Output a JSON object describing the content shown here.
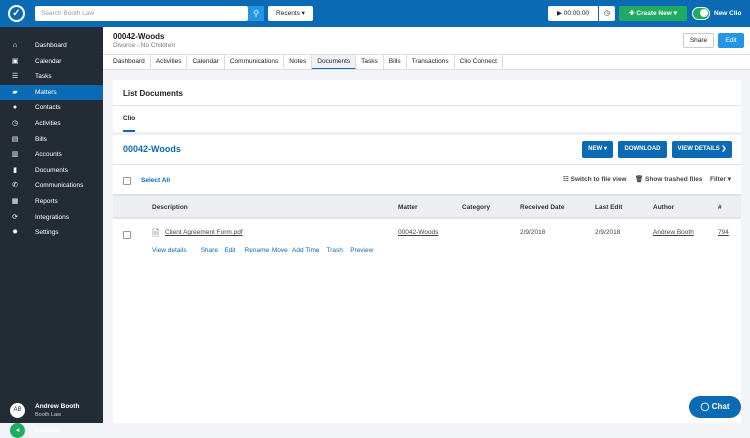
{
  "topbar": {
    "search_placeholder": "Search Booth Law",
    "recents": "Recents ▾",
    "timer": "▶ 00:00:00",
    "create_new": "✚ Create New ▾",
    "new_clio": "New Clio"
  },
  "sidebar": {
    "items": [
      {
        "label": "Dashboard",
        "icon": "⌂"
      },
      {
        "label": "Calendar",
        "icon": "▣"
      },
      {
        "label": "Tasks",
        "icon": "☰"
      },
      {
        "label": "Matters",
        "icon": "▰"
      },
      {
        "label": "Contacts",
        "icon": "●"
      },
      {
        "label": "Activities",
        "icon": "◷"
      },
      {
        "label": "Bills",
        "icon": "▤"
      },
      {
        "label": "Accounts",
        "icon": "▥"
      },
      {
        "label": "Documents",
        "icon": "▮"
      },
      {
        "label": "Communications",
        "icon": "✆"
      },
      {
        "label": "Reports",
        "icon": "▦"
      },
      {
        "label": "Integrations",
        "icon": "⟳"
      },
      {
        "label": "Settings",
        "icon": "✹"
      }
    ],
    "active": "Matters",
    "user": {
      "initials": "AB",
      "name": "Andrew Booth",
      "firm": "Booth Law"
    },
    "collapse": "Collapse"
  },
  "matter": {
    "title": "00042-Woods",
    "subtitle": "Divorce - No Children",
    "share": "Share",
    "edit": "Edit"
  },
  "tabs": [
    "Dashboard",
    "Activities",
    "Calendar",
    "Communications",
    "Notes",
    "Documents",
    "Tasks",
    "Bills",
    "Transactions",
    "Clio Connect"
  ],
  "active_tab": "Documents",
  "card": {
    "title": "List Documents",
    "subtab": "Clio",
    "folder": "00042-Woods",
    "new": "NEW ▾",
    "download": "DOWNLOAD",
    "view_details": "VIEW DETAILS ❯",
    "select_all": "Select All",
    "switch_view": "☷ Switch to file view",
    "show_trashed": "🗑 Show trashed files",
    "filter": "Filter ▾"
  },
  "table": {
    "headers": [
      "Description",
      "Matter",
      "Category",
      "Received Date",
      "Last Edit",
      "Author",
      "#"
    ],
    "rows": [
      {
        "description": "Client Agreement Form.pdf",
        "matter": "00042-Woods",
        "category": "",
        "received": "2/9/2018",
        "last_edit": "2/9/2018",
        "author": "Andrew Booth",
        "number": "794"
      }
    ],
    "actions": [
      "View details",
      "Share",
      "Edit",
      "Rename",
      "Move",
      "Add Time",
      "Trash",
      "Preview"
    ]
  },
  "chat": "Chat",
  "colors": {
    "brand": "#0a6ab4",
    "sidebar": "#232b35",
    "green": "#1fab62"
  }
}
